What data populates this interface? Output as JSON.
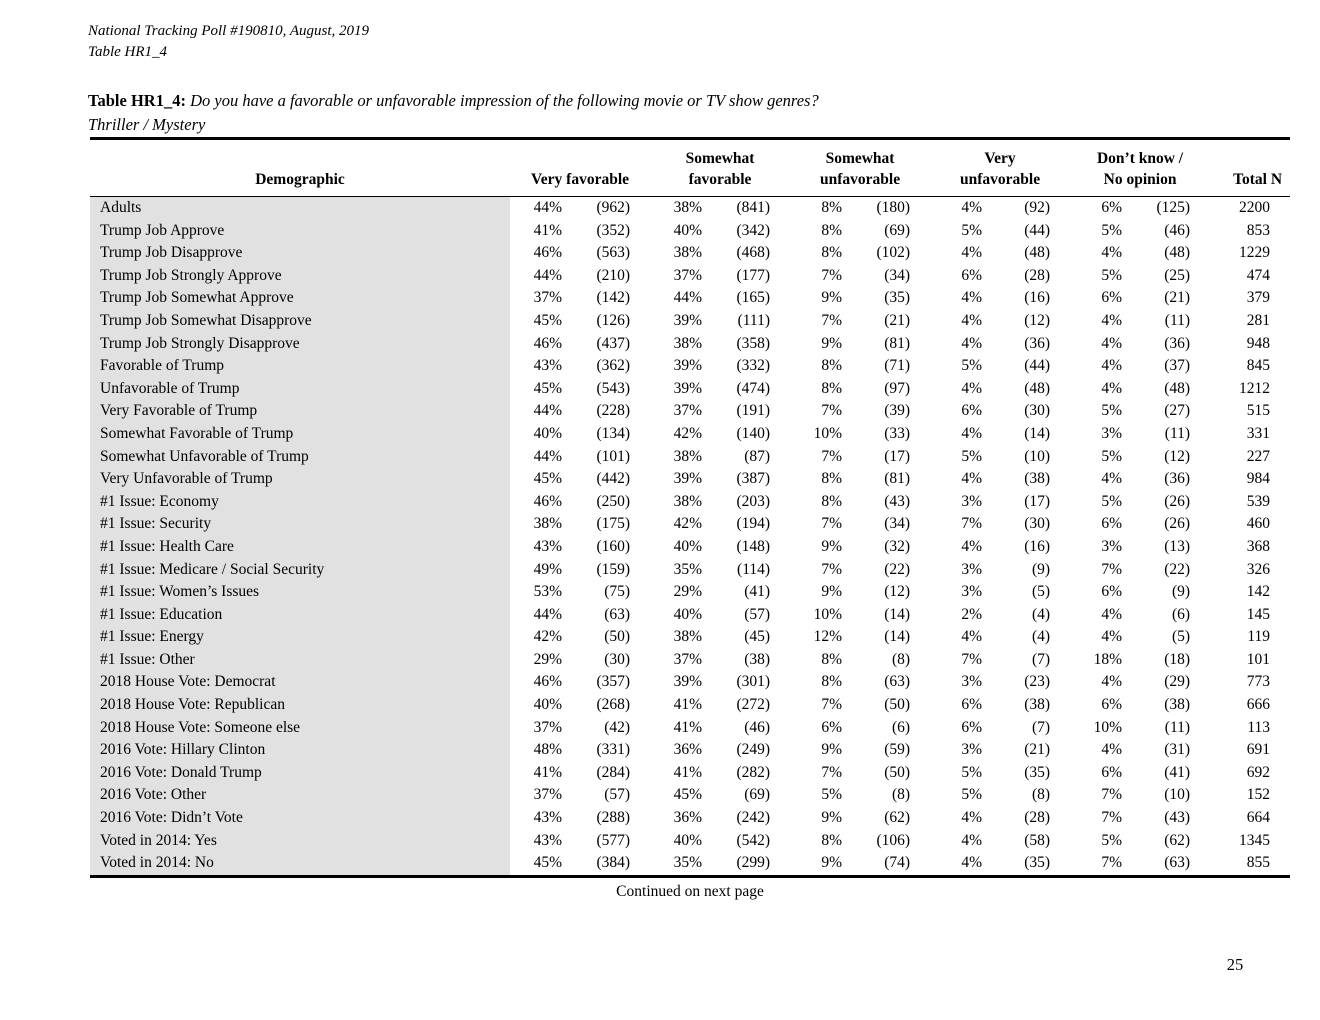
{
  "page": {
    "meta_line1": "National Tracking Poll #190810, August, 2019",
    "meta_line2": "Table HR1_4",
    "title_label": "Table HR1_4:",
    "title_question": "Do you have a favorable or unfavorable impression of the following movie or TV show genres?",
    "title_sub": "Thriller / Mystery",
    "footer_note": "Continued on next page",
    "page_number": "25"
  },
  "table": {
    "headers": [
      {
        "line1": "",
        "line2": "Demographic"
      },
      {
        "line1": "",
        "line2": "Very favorable"
      },
      {
        "line1": "Somewhat",
        "line2": "favorable"
      },
      {
        "line1": "Somewhat",
        "line2": "unfavorable"
      },
      {
        "line1": "Very",
        "line2": "unfavorable"
      },
      {
        "line1": "Don’t know /",
        "line2": "No opinion"
      },
      {
        "line1": "",
        "line2": "Total N"
      }
    ],
    "rows": [
      {
        "demographic": "Adults",
        "values": [
          "44%",
          "(962)",
          "38%",
          "(841)",
          "8%",
          "(180)",
          "4%",
          "(92)",
          "6%",
          "(125)"
        ],
        "total": "2200"
      },
      {
        "demographic": "Trump Job Approve",
        "values": [
          "41%",
          "(352)",
          "40%",
          "(342)",
          "8%",
          "(69)",
          "5%",
          "(44)",
          "5%",
          "(46)"
        ],
        "total": "853"
      },
      {
        "demographic": "Trump Job Disapprove",
        "values": [
          "46%",
          "(563)",
          "38%",
          "(468)",
          "8%",
          "(102)",
          "4%",
          "(48)",
          "4%",
          "(48)"
        ],
        "total": "1229"
      },
      {
        "demographic": "Trump Job Strongly Approve",
        "values": [
          "44%",
          "(210)",
          "37%",
          "(177)",
          "7%",
          "(34)",
          "6%",
          "(28)",
          "5%",
          "(25)"
        ],
        "total": "474"
      },
      {
        "demographic": "Trump Job Somewhat Approve",
        "values": [
          "37%",
          "(142)",
          "44%",
          "(165)",
          "9%",
          "(35)",
          "4%",
          "(16)",
          "6%",
          "(21)"
        ],
        "total": "379"
      },
      {
        "demographic": "Trump Job Somewhat Disapprove",
        "values": [
          "45%",
          "(126)",
          "39%",
          "(111)",
          "7%",
          "(21)",
          "4%",
          "(12)",
          "4%",
          "(11)"
        ],
        "total": "281"
      },
      {
        "demographic": "Trump Job Strongly Disapprove",
        "values": [
          "46%",
          "(437)",
          "38%",
          "(358)",
          "9%",
          "(81)",
          "4%",
          "(36)",
          "4%",
          "(36)"
        ],
        "total": "948"
      },
      {
        "demographic": "Favorable of Trump",
        "values": [
          "43%",
          "(362)",
          "39%",
          "(332)",
          "8%",
          "(71)",
          "5%",
          "(44)",
          "4%",
          "(37)"
        ],
        "total": "845"
      },
      {
        "demographic": "Unfavorable of Trump",
        "values": [
          "45%",
          "(543)",
          "39%",
          "(474)",
          "8%",
          "(97)",
          "4%",
          "(48)",
          "4%",
          "(48)"
        ],
        "total": "1212"
      },
      {
        "demographic": "Very Favorable of Trump",
        "values": [
          "44%",
          "(228)",
          "37%",
          "(191)",
          "7%",
          "(39)",
          "6%",
          "(30)",
          "5%",
          "(27)"
        ],
        "total": "515"
      },
      {
        "demographic": "Somewhat Favorable of Trump",
        "values": [
          "40%",
          "(134)",
          "42%",
          "(140)",
          "10%",
          "(33)",
          "4%",
          "(14)",
          "3%",
          "(11)"
        ],
        "total": "331"
      },
      {
        "demographic": "Somewhat Unfavorable of Trump",
        "values": [
          "44%",
          "(101)",
          "38%",
          "(87)",
          "7%",
          "(17)",
          "5%",
          "(10)",
          "5%",
          "(12)"
        ],
        "total": "227"
      },
      {
        "demographic": "Very Unfavorable of Trump",
        "values": [
          "45%",
          "(442)",
          "39%",
          "(387)",
          "8%",
          "(81)",
          "4%",
          "(38)",
          "4%",
          "(36)"
        ],
        "total": "984"
      },
      {
        "demographic": "#1 Issue: Economy",
        "values": [
          "46%",
          "(250)",
          "38%",
          "(203)",
          "8%",
          "(43)",
          "3%",
          "(17)",
          "5%",
          "(26)"
        ],
        "total": "539"
      },
      {
        "demographic": "#1 Issue: Security",
        "values": [
          "38%",
          "(175)",
          "42%",
          "(194)",
          "7%",
          "(34)",
          "7%",
          "(30)",
          "6%",
          "(26)"
        ],
        "total": "460"
      },
      {
        "demographic": "#1 Issue: Health Care",
        "values": [
          "43%",
          "(160)",
          "40%",
          "(148)",
          "9%",
          "(32)",
          "4%",
          "(16)",
          "3%",
          "(13)"
        ],
        "total": "368"
      },
      {
        "demographic": "#1 Issue: Medicare / Social Security",
        "values": [
          "49%",
          "(159)",
          "35%",
          "(114)",
          "7%",
          "(22)",
          "3%",
          "(9)",
          "7%",
          "(22)"
        ],
        "total": "326"
      },
      {
        "demographic": "#1 Issue: Women’s Issues",
        "values": [
          "53%",
          "(75)",
          "29%",
          "(41)",
          "9%",
          "(12)",
          "3%",
          "(5)",
          "6%",
          "(9)"
        ],
        "total": "142"
      },
      {
        "demographic": "#1 Issue: Education",
        "values": [
          "44%",
          "(63)",
          "40%",
          "(57)",
          "10%",
          "(14)",
          "2%",
          "(4)",
          "4%",
          "(6)"
        ],
        "total": "145"
      },
      {
        "demographic": "#1 Issue: Energy",
        "values": [
          "42%",
          "(50)",
          "38%",
          "(45)",
          "12%",
          "(14)",
          "4%",
          "(4)",
          "4%",
          "(5)"
        ],
        "total": "119"
      },
      {
        "demographic": "#1 Issue: Other",
        "values": [
          "29%",
          "(30)",
          "37%",
          "(38)",
          "8%",
          "(8)",
          "7%",
          "(7)",
          "18%",
          "(18)"
        ],
        "total": "101"
      },
      {
        "demographic": "2018 House Vote: Democrat",
        "values": [
          "46%",
          "(357)",
          "39%",
          "(301)",
          "8%",
          "(63)",
          "3%",
          "(23)",
          "4%",
          "(29)"
        ],
        "total": "773"
      },
      {
        "demographic": "2018 House Vote: Republican",
        "values": [
          "40%",
          "(268)",
          "41%",
          "(272)",
          "7%",
          "(50)",
          "6%",
          "(38)",
          "6%",
          "(38)"
        ],
        "total": "666"
      },
      {
        "demographic": "2018 House Vote: Someone else",
        "values": [
          "37%",
          "(42)",
          "41%",
          "(46)",
          "6%",
          "(6)",
          "6%",
          "(7)",
          "10%",
          "(11)"
        ],
        "total": "113"
      },
      {
        "demographic": "2016 Vote: Hillary Clinton",
        "values": [
          "48%",
          "(331)",
          "36%",
          "(249)",
          "9%",
          "(59)",
          "3%",
          "(21)",
          "4%",
          "(31)"
        ],
        "total": "691"
      },
      {
        "demographic": "2016 Vote: Donald Trump",
        "values": [
          "41%",
          "(284)",
          "41%",
          "(282)",
          "7%",
          "(50)",
          "5%",
          "(35)",
          "6%",
          "(41)"
        ],
        "total": "692"
      },
      {
        "demographic": "2016 Vote: Other",
        "values": [
          "37%",
          "(57)",
          "45%",
          "(69)",
          "5%",
          "(8)",
          "5%",
          "(8)",
          "7%",
          "(10)"
        ],
        "total": "152"
      },
      {
        "demographic": "2016 Vote: Didn’t Vote",
        "values": [
          "43%",
          "(288)",
          "36%",
          "(242)",
          "9%",
          "(62)",
          "4%",
          "(28)",
          "7%",
          "(43)"
        ],
        "total": "664"
      },
      {
        "demographic": "Voted in 2014: Yes",
        "values": [
          "43%",
          "(577)",
          "40%",
          "(542)",
          "8%",
          "(106)",
          "4%",
          "(58)",
          "5%",
          "(62)"
        ],
        "total": "1345"
      },
      {
        "demographic": "Voted in 2014: No",
        "values": [
          "45%",
          "(384)",
          "35%",
          "(299)",
          "9%",
          "(74)",
          "4%",
          "(35)",
          "7%",
          "(63)"
        ],
        "total": "855"
      }
    ]
  }
}
